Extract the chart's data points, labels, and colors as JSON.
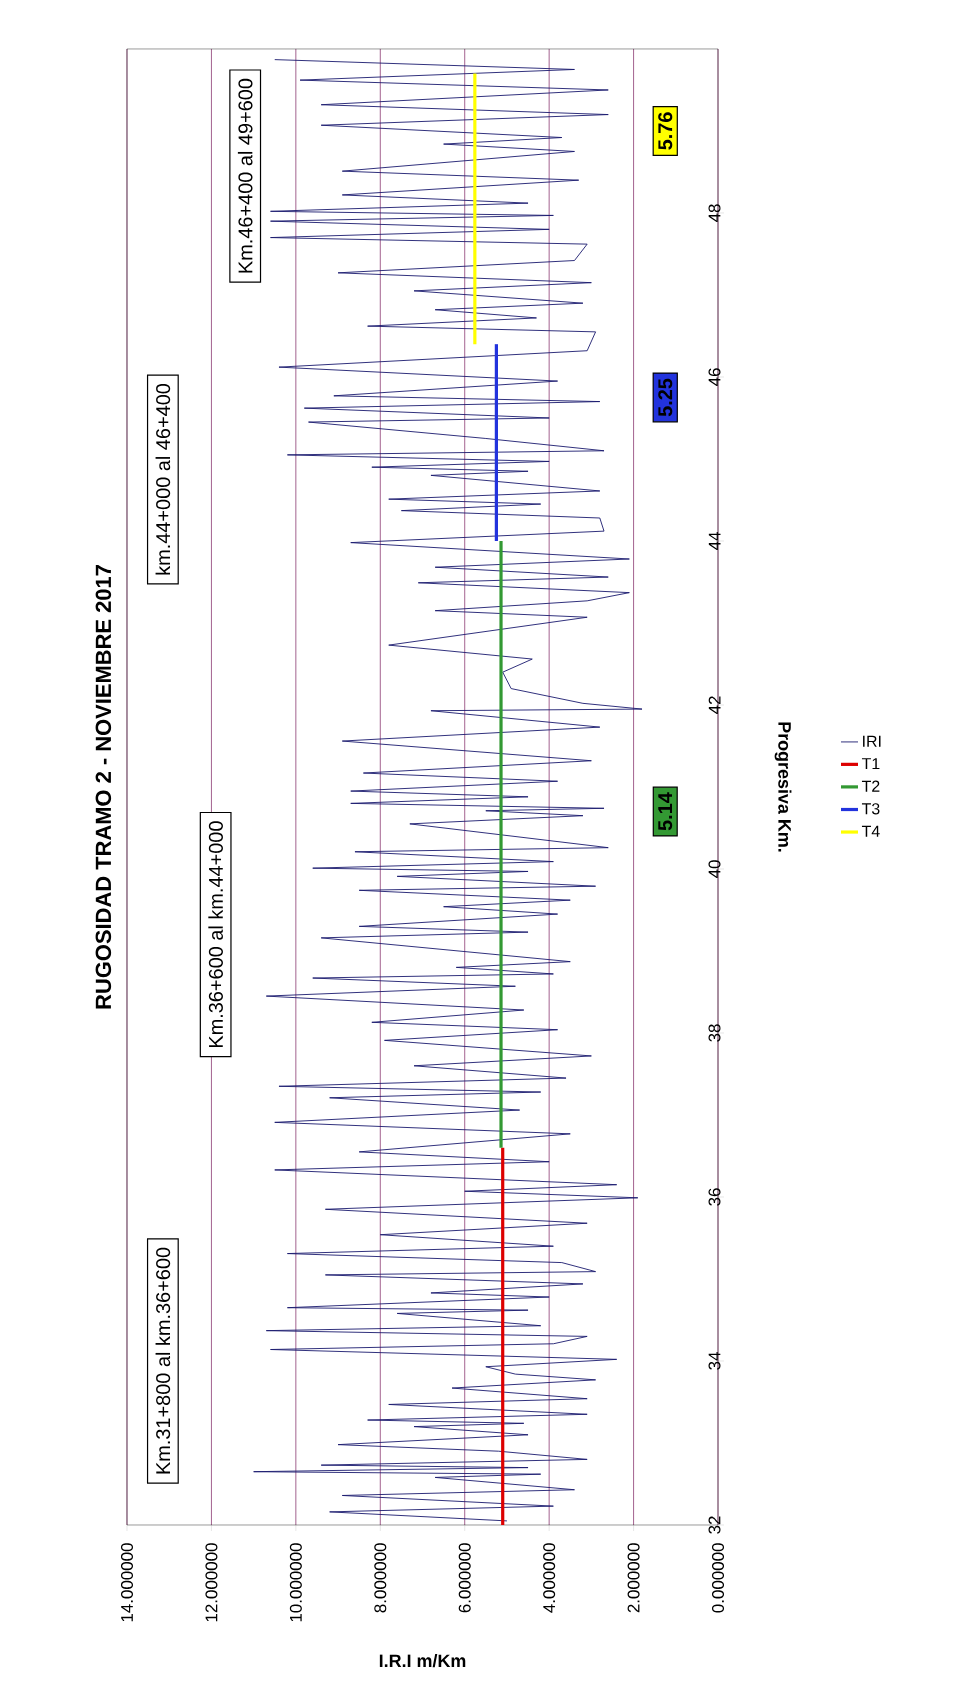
{
  "chart_data": {
    "type": "line",
    "title": "RUGOSIDAD TRAMO 2 - NOVIEMBRE 2017",
    "xlabel": "I.R.I m/Km",
    "ylabel": "Progresiva Km.",
    "xlim": [
      14,
      0
    ],
    "xticks": [
      {
        "value": 14,
        "label": "14.000000"
      },
      {
        "value": 12,
        "label": "12.000000"
      },
      {
        "value": 10,
        "label": "10.000000"
      },
      {
        "value": 8,
        "label": "8.000000"
      },
      {
        "value": 6,
        "label": "6.000000"
      },
      {
        "value": 4,
        "label": "4.000000"
      },
      {
        "value": 2,
        "label": "2.000000"
      },
      {
        "value": 0,
        "label": "0.000000"
      }
    ],
    "ylim": [
      32,
      50
    ],
    "yticks": [
      32,
      34,
      36,
      38,
      40,
      42,
      44,
      46,
      48
    ],
    "grid": "x",
    "legend": "right",
    "annotations": [
      "Km.31+800 al km.36+600",
      "Km.36+600 al km.44+000",
      "km.44+000 al 46+400",
      "Km.46+400 al 49+600",
      "5.14",
      "5.25",
      "5.76"
    ],
    "series": [
      {
        "name": "IRI",
        "color": "#1a1a6e",
        "values": [
          32.05,
          32.16,
          32.23,
          32.36,
          32.43,
          32.58,
          32.62,
          32.65,
          32.7,
          32.73,
          32.8,
          32.9,
          32.98,
          33.1,
          33.2,
          33.24,
          33.28,
          33.35,
          33.47,
          33.54,
          33.67,
          33.77,
          33.84,
          33.93,
          34.02,
          34.14,
          34.21,
          34.3,
          34.37,
          34.43,
          34.58,
          34.62,
          34.65,
          34.78,
          34.83,
          34.94,
          35.05,
          35.09,
          35.2,
          35.31,
          35.4,
          35.54,
          35.68,
          35.85,
          35.99,
          36.07,
          36.15,
          36.33,
          36.43,
          36.55,
          36.77,
          36.91,
          37.06,
          37.21,
          37.28,
          37.35,
          37.45,
          37.6,
          37.72,
          37.91,
          38.04,
          38.13,
          38.28,
          38.45,
          38.57,
          38.67,
          38.72,
          38.8,
          38.87,
          39.16,
          39.23,
          39.3,
          39.45,
          39.54,
          39.62,
          39.74,
          39.79,
          39.91,
          39.97,
          40.01,
          40.09,
          40.21,
          40.26,
          40.55,
          40.65,
          40.71,
          40.74,
          40.8,
          40.88,
          40.95,
          41.07,
          41.17,
          41.32,
          41.56,
          41.73,
          41.93,
          41.95,
          42.02,
          42.2,
          42.4,
          42.56,
          42.73,
          43.07,
          43.15,
          43.27,
          43.37,
          43.49,
          43.56,
          43.68,
          43.78,
          43.98,
          44.12,
          44.28,
          44.37,
          44.45,
          44.51,
          44.61,
          44.8,
          44.85,
          44.9,
          44.97,
          45.05,
          45.1,
          45.25,
          45.45,
          45.5,
          45.62,
          45.7,
          45.77,
          45.95,
          46.12,
          46.32,
          46.55,
          46.62,
          46.72,
          46.82,
          46.9,
          47.05,
          47.15,
          47.27,
          47.42,
          47.62,
          47.7,
          47.8,
          47.9,
          47.97,
          48.02,
          48.12,
          48.22,
          48.4,
          48.51,
          48.75,
          48.84,
          48.92,
          49.07,
          49.2,
          49.32,
          49.5,
          49.62,
          49.75,
          49.87
        ],
        "x": [
          5.0,
          9.2,
          3.9,
          8.9,
          3.4,
          6.7,
          4.2,
          11.0,
          4.5,
          9.4,
          3.1,
          5.2,
          9.0,
          4.5,
          7.2,
          4.6,
          8.3,
          3.1,
          7.8,
          3.1,
          6.3,
          2.9,
          4.8,
          5.5,
          2.4,
          10.6,
          3.9,
          3.1,
          10.7,
          4.2,
          7.6,
          4.5,
          10.2,
          4.0,
          6.8,
          3.2,
          9.3,
          2.9,
          3.7,
          10.2,
          3.9,
          8.0,
          3.1,
          9.3,
          1.9,
          6.0,
          2.4,
          10.5,
          4.0,
          8.5,
          3.5,
          10.5,
          4.7,
          9.2,
          4.2,
          10.4,
          3.6,
          7.2,
          3.0,
          7.9,
          3.8,
          8.2,
          4.6,
          10.7,
          4.8,
          9.6,
          3.9,
          6.2,
          3.5,
          9.4,
          4.5,
          8.5,
          3.8,
          6.5,
          3.5,
          8.5,
          2.9,
          7.6,
          4.5,
          9.6,
          3.9,
          8.6,
          2.6,
          7.3,
          3.2,
          5.5,
          2.7,
          8.7,
          4.5,
          8.7,
          3.8,
          8.4,
          3.0,
          8.9,
          2.8,
          6.8,
          1.8,
          3.2,
          4.9,
          5.1,
          4.4,
          7.8,
          3.1,
          6.7,
          3.1,
          2.1,
          7.1,
          2.6,
          6.7,
          2.1,
          8.7,
          2.7,
          2.8,
          7.5,
          4.2,
          7.8,
          2.8,
          6.8,
          4.5,
          8.2,
          4.0,
          10.2,
          2.7,
          5.5,
          9.7,
          4.0,
          9.8,
          2.8,
          9.1,
          3.8,
          10.4,
          3.1,
          2.9,
          8.3,
          4.3,
          6.7,
          3.2,
          7.2,
          3.0,
          9.0,
          3.4,
          3.1,
          10.6,
          4.0,
          10.6,
          3.9,
          10.6,
          4.5,
          8.9,
          3.3,
          8.9,
          3.4,
          6.5,
          3.7,
          9.4,
          2.6,
          9.4,
          2.6,
          9.9,
          3.4,
          10.5
        ]
      },
      {
        "name": "T1",
        "color": "#dd0000",
        "x": [
          5.1,
          5.1
        ],
        "values": [
          32,
          36.6
        ]
      },
      {
        "name": "T2",
        "color": "#339933",
        "x": [
          5.14,
          5.14
        ],
        "values": [
          36.6,
          44.0
        ]
      },
      {
        "name": "T3",
        "color": "#2233dd",
        "x": [
          5.25,
          5.25
        ],
        "values": [
          44.0,
          46.4
        ]
      },
      {
        "name": "T4",
        "color": "#ffff00",
        "x": [
          5.76,
          5.76
        ],
        "values": [
          46.4,
          49.7
        ]
      }
    ]
  }
}
